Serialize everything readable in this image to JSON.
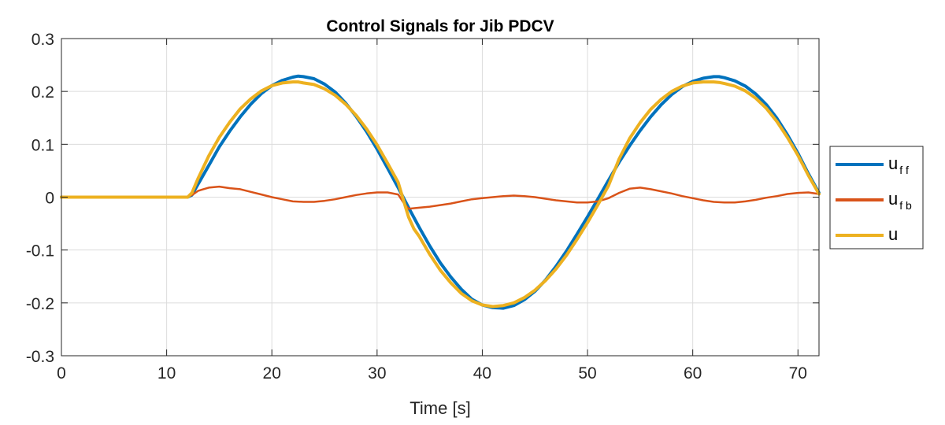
{
  "chart_data": {
    "type": "line",
    "title": "Control Signals for Jib PDCV",
    "xlabel": "Time [s]",
    "ylabel": "",
    "xlim": [
      0,
      72
    ],
    "ylim": [
      -0.3,
      0.3
    ],
    "x_ticks": [
      0,
      10,
      20,
      30,
      40,
      50,
      60,
      70
    ],
    "y_ticks": [
      -0.3,
      -0.2,
      -0.1,
      0,
      0.1,
      0.2,
      0.3
    ],
    "x_tick_labels": [
      "0",
      "10",
      "20",
      "30",
      "40",
      "50",
      "60",
      "70"
    ],
    "y_tick_labels": [
      "-0.3",
      "-0.2",
      "-0.1",
      "0",
      "0.1",
      "0.2",
      "0.3"
    ],
    "grid": true,
    "legend_position": "right",
    "series": [
      {
        "name": "u_ff",
        "legend_main": "u",
        "legend_sub": "f f",
        "color": "#0072BD",
        "points": [
          [
            0,
            0
          ],
          [
            2,
            0
          ],
          [
            5,
            0
          ],
          [
            8,
            0
          ],
          [
            10,
            0
          ],
          [
            11,
            0
          ],
          [
            12,
            0
          ],
          [
            12.4,
            0.004
          ],
          [
            13,
            0.025
          ],
          [
            14,
            0.06
          ],
          [
            15,
            0.095
          ],
          [
            16,
            0.125
          ],
          [
            17,
            0.152
          ],
          [
            18,
            0.176
          ],
          [
            19,
            0.196
          ],
          [
            20,
            0.211
          ],
          [
            21,
            0.221
          ],
          [
            22,
            0.227
          ],
          [
            22.5,
            0.229
          ],
          [
            23,
            0.228
          ],
          [
            24,
            0.224
          ],
          [
            25,
            0.214
          ],
          [
            26,
            0.199
          ],
          [
            27,
            0.178
          ],
          [
            28,
            0.153
          ],
          [
            29,
            0.124
          ],
          [
            30,
            0.091
          ],
          [
            31,
            0.055
          ],
          [
            32,
            0.018
          ],
          [
            33,
            -0.02
          ],
          [
            34,
            -0.057
          ],
          [
            35,
            -0.092
          ],
          [
            36,
            -0.124
          ],
          [
            37,
            -0.151
          ],
          [
            38,
            -0.174
          ],
          [
            39,
            -0.193
          ],
          [
            40,
            -0.204
          ],
          [
            41,
            -0.209
          ],
          [
            42,
            -0.21
          ],
          [
            43,
            -0.205
          ],
          [
            44,
            -0.194
          ],
          [
            45,
            -0.178
          ],
          [
            46,
            -0.157
          ],
          [
            47,
            -0.131
          ],
          [
            48,
            -0.102
          ],
          [
            49,
            -0.07
          ],
          [
            50,
            -0.037
          ],
          [
            51,
            -0.003
          ],
          [
            52,
            0.032
          ],
          [
            53,
            0.066
          ],
          [
            54,
            0.097
          ],
          [
            55,
            0.126
          ],
          [
            56,
            0.152
          ],
          [
            57,
            0.175
          ],
          [
            58,
            0.194
          ],
          [
            59,
            0.209
          ],
          [
            60,
            0.219
          ],
          [
            61,
            0.225
          ],
          [
            62,
            0.228
          ],
          [
            62.5,
            0.228
          ],
          [
            63,
            0.226
          ],
          [
            64,
            0.22
          ],
          [
            65,
            0.21
          ],
          [
            66,
            0.195
          ],
          [
            67,
            0.175
          ],
          [
            68,
            0.149
          ],
          [
            69,
            0.118
          ],
          [
            70,
            0.083
          ],
          [
            71,
            0.044
          ],
          [
            72,
            0.008
          ]
        ]
      },
      {
        "name": "u_fb",
        "legend_main": "u",
        "legend_sub": "f b",
        "color": "#D95319",
        "points": [
          [
            0,
            0
          ],
          [
            5,
            0
          ],
          [
            10,
            0
          ],
          [
            12,
            0
          ],
          [
            12.5,
            0.005
          ],
          [
            13,
            0.012
          ],
          [
            14,
            0.018
          ],
          [
            15,
            0.02
          ],
          [
            16,
            0.017
          ],
          [
            17,
            0.015
          ],
          [
            18,
            0.01
          ],
          [
            19,
            0.005
          ],
          [
            20,
            0
          ],
          [
            21,
            -0.004
          ],
          [
            22,
            -0.008
          ],
          [
            23,
            -0.009
          ],
          [
            24,
            -0.009
          ],
          [
            25,
            -0.007
          ],
          [
            26,
            -0.004
          ],
          [
            27,
            0
          ],
          [
            28,
            0.004
          ],
          [
            29,
            0.007
          ],
          [
            30,
            0.009
          ],
          [
            31,
            0.009
          ],
          [
            32,
            0.005
          ],
          [
            32.5,
            -0.01
          ],
          [
            33,
            -0.022
          ],
          [
            34,
            -0.02
          ],
          [
            35,
            -0.018
          ],
          [
            36,
            -0.015
          ],
          [
            37,
            -0.012
          ],
          [
            38,
            -0.008
          ],
          [
            39,
            -0.004
          ],
          [
            40,
            -0.002
          ],
          [
            41,
            0
          ],
          [
            42,
            0.002
          ],
          [
            43,
            0.003
          ],
          [
            44,
            0.002
          ],
          [
            45,
            0
          ],
          [
            46,
            -0.003
          ],
          [
            47,
            -0.006
          ],
          [
            48,
            -0.008
          ],
          [
            49,
            -0.01
          ],
          [
            50,
            -0.01
          ],
          [
            51,
            -0.008
          ],
          [
            52,
            -0.002
          ],
          [
            53,
            0.008
          ],
          [
            54,
            0.016
          ],
          [
            55,
            0.018
          ],
          [
            56,
            0.015
          ],
          [
            57,
            0.011
          ],
          [
            58,
            0.007
          ],
          [
            59,
            0.002
          ],
          [
            60,
            -0.002
          ],
          [
            61,
            -0.006
          ],
          [
            62,
            -0.009
          ],
          [
            63,
            -0.01
          ],
          [
            64,
            -0.01
          ],
          [
            65,
            -0.008
          ],
          [
            66,
            -0.005
          ],
          [
            67,
            -0.001
          ],
          [
            68,
            0.002
          ],
          [
            69,
            0.006
          ],
          [
            70,
            0.008
          ],
          [
            71,
            0.009
          ],
          [
            72,
            0.006
          ]
        ]
      },
      {
        "name": "u",
        "legend_main": "u",
        "legend_sub": "",
        "color": "#EDB120",
        "points": [
          [
            0,
            0
          ],
          [
            2,
            0
          ],
          [
            5,
            0
          ],
          [
            8,
            0
          ],
          [
            10,
            0
          ],
          [
            11,
            0
          ],
          [
            12,
            0
          ],
          [
            12.4,
            0.008
          ],
          [
            13,
            0.036
          ],
          [
            14,
            0.078
          ],
          [
            15,
            0.113
          ],
          [
            16,
            0.142
          ],
          [
            17,
            0.167
          ],
          [
            18,
            0.186
          ],
          [
            19,
            0.201
          ],
          [
            20,
            0.211
          ],
          [
            21,
            0.216
          ],
          [
            22,
            0.218
          ],
          [
            22.5,
            0.218
          ],
          [
            23,
            0.216
          ],
          [
            24,
            0.213
          ],
          [
            25,
            0.205
          ],
          [
            26,
            0.193
          ],
          [
            27,
            0.176
          ],
          [
            28,
            0.155
          ],
          [
            29,
            0.129
          ],
          [
            30,
            0.099
          ],
          [
            31,
            0.064
          ],
          [
            32,
            0.028
          ],
          [
            32.5,
            -0.005
          ],
          [
            33,
            -0.038
          ],
          [
            33.5,
            -0.06
          ],
          [
            34,
            -0.074
          ],
          [
            35,
            -0.108
          ],
          [
            36,
            -0.138
          ],
          [
            37,
            -0.162
          ],
          [
            38,
            -0.182
          ],
          [
            39,
            -0.196
          ],
          [
            40,
            -0.204
          ],
          [
            41,
            -0.207
          ],
          [
            42,
            -0.205
          ],
          [
            43,
            -0.2
          ],
          [
            44,
            -0.19
          ],
          [
            45,
            -0.176
          ],
          [
            46,
            -0.158
          ],
          [
            47,
            -0.136
          ],
          [
            48,
            -0.11
          ],
          [
            49,
            -0.08
          ],
          [
            50,
            -0.048
          ],
          [
            51,
            -0.014
          ],
          [
            52,
            0.022
          ],
          [
            53,
            0.072
          ],
          [
            54,
            0.111
          ],
          [
            55,
            0.141
          ],
          [
            56,
            0.166
          ],
          [
            57,
            0.185
          ],
          [
            58,
            0.2
          ],
          [
            59,
            0.21
          ],
          [
            60,
            0.216
          ],
          [
            61,
            0.218
          ],
          [
            62,
            0.218
          ],
          [
            62.5,
            0.217
          ],
          [
            63,
            0.215
          ],
          [
            64,
            0.21
          ],
          [
            65,
            0.201
          ],
          [
            66,
            0.187
          ],
          [
            67,
            0.168
          ],
          [
            68,
            0.143
          ],
          [
            69,
            0.113
          ],
          [
            70,
            0.079
          ],
          [
            71,
            0.041
          ],
          [
            72,
            0.006
          ]
        ]
      }
    ]
  }
}
